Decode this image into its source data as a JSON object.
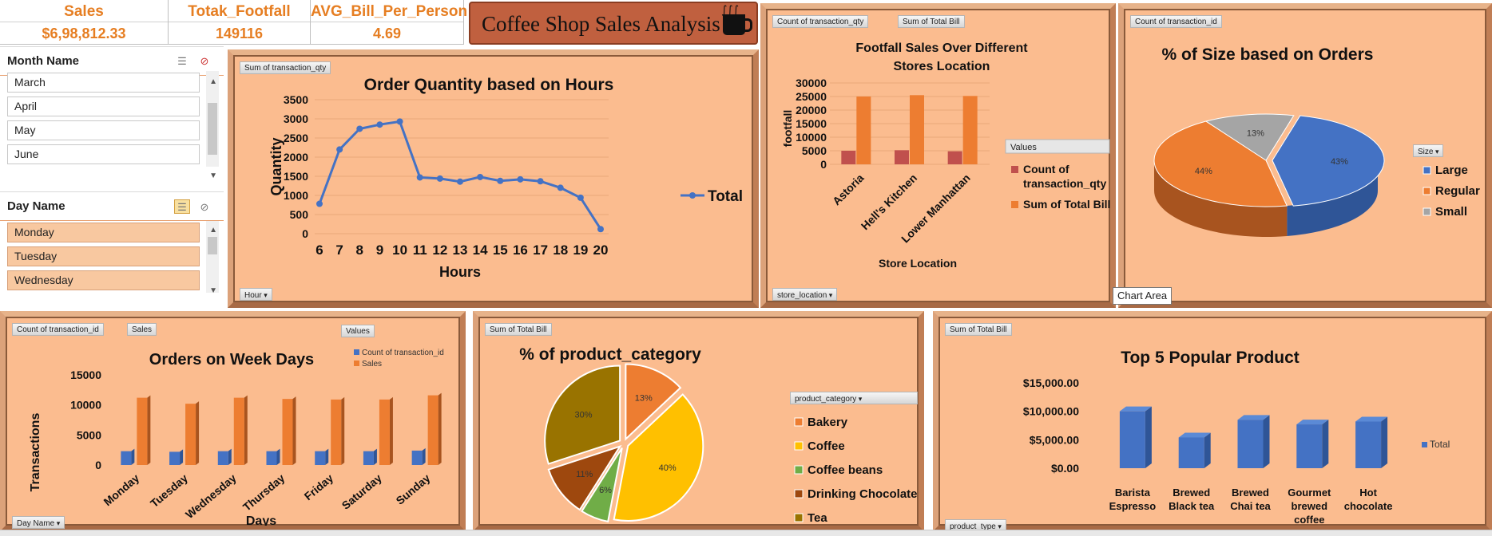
{
  "kpis": [
    {
      "label": "Sales",
      "value": "$6,98,812.33"
    },
    {
      "label": "Totak_Footfall",
      "value": "149116"
    },
    {
      "label": "AVG_Bill_Per_Person",
      "value": "4.69"
    }
  ],
  "dashboard_title": "Coffee Shop Sales Analysis",
  "slicer_month": {
    "title": "Month Name",
    "items": [
      "March",
      "April",
      "May",
      "June"
    ]
  },
  "slicer_day": {
    "title": "Day Name",
    "items": [
      "Monday",
      "Tuesday",
      "Wednesday"
    ]
  },
  "tooltip": "Chart Area",
  "field_buttons": {
    "hours_value": "Sum of transaction_qty",
    "hours_axis": "Hour",
    "store_value1": "Count of transaction_qty",
    "store_value2": "Sum of Total Bill",
    "store_axis": "store_location",
    "size_value": "Count of transaction_id",
    "size_legend": "Size",
    "week_value1": "Count of transaction_id",
    "week_value2": "Sales",
    "week_legend": "Values",
    "week_axis": "Day Name",
    "cat_value": "Sum of Total Bill",
    "cat_legend": "product_category",
    "prod_value": "Sum of Total Bill",
    "prod_axis": "product_type"
  },
  "colors": {
    "accent": "#e67e22",
    "panel_bg": "#fbbc8f",
    "blue": "#4472c4",
    "orange": "#ed7d31",
    "gray": "#a5a5a5",
    "dark_red": "#c0504d"
  },
  "chart_data": [
    {
      "id": "hours",
      "type": "line",
      "title": "Order Quantity based on Hours",
      "xlabel": "Hours",
      "ylabel": "Quantity",
      "x": [
        6,
        7,
        8,
        9,
        10,
        11,
        12,
        13,
        14,
        15,
        16,
        17,
        18,
        19,
        20
      ],
      "series": [
        {
          "name": "Total",
          "values": [
            780,
            2200,
            2740,
            2850,
            2930,
            1470,
            1440,
            1360,
            1480,
            1380,
            1420,
            1370,
            1200,
            940,
            120
          ]
        }
      ],
      "ylim": [
        0,
        3500
      ],
      "yticks": [
        0,
        500,
        1000,
        1500,
        2000,
        2500,
        3000,
        3500
      ],
      "grid": true,
      "legend": "right"
    },
    {
      "id": "store",
      "type": "bar",
      "title": "Footfall Sales Over Different Stores Location",
      "xlabel": "Store Location",
      "ylabel": "footfall",
      "categories": [
        "Astoria",
        "Hell's Kitchen",
        "Lower Manhattan"
      ],
      "series": [
        {
          "name": "Count of transaction_qty",
          "values": [
            5000,
            5200,
            4800
          ]
        },
        {
          "name": "Sum of Total Bill",
          "values": [
            25000,
            25500,
            25200
          ]
        }
      ],
      "legend_title": "Values",
      "ylim": [
        0,
        30000
      ],
      "yticks": [
        0,
        5000,
        10000,
        15000,
        20000,
        25000,
        30000
      ]
    },
    {
      "id": "size",
      "type": "pie",
      "title": "% of Size based on Orders",
      "categories": [
        "Large",
        "Regular",
        "Small"
      ],
      "values": [
        43,
        44,
        13
      ],
      "labels": [
        "43%",
        "44%",
        "13%"
      ],
      "legend": "right"
    },
    {
      "id": "week",
      "type": "bar",
      "title": "Orders on Week Days",
      "xlabel": "Days",
      "ylabel": "Transactions",
      "categories": [
        "Monday",
        "Tuesday",
        "Wednesday",
        "Thursday",
        "Friday",
        "Saturday",
        "Sunday"
      ],
      "series": [
        {
          "name": "Count of transaction_id",
          "values": [
            2300,
            2200,
            2300,
            2300,
            2300,
            2300,
            2400
          ]
        },
        {
          "name": "Sales",
          "values": [
            11200,
            10200,
            11200,
            11000,
            10900,
            10900,
            11600
          ]
        }
      ],
      "ylim": [
        0,
        15000
      ],
      "yticks": [
        0,
        5000,
        10000,
        15000
      ],
      "legend": "top-right"
    },
    {
      "id": "category",
      "type": "pie",
      "title": "% of product_category",
      "categories": [
        "Bakery",
        "Coffee",
        "Coffee beans",
        "Drinking Chocolate",
        "Tea"
      ],
      "values": [
        13,
        40,
        6,
        11,
        30
      ],
      "labels": [
        "13%",
        "40%",
        "6%",
        "11%",
        "30%"
      ],
      "legend": "right"
    },
    {
      "id": "products",
      "type": "bar",
      "title": "Top 5 Popular Product",
      "categories": [
        "Barista Espresso",
        "Brewed Black tea",
        "Brewed Chai tea",
        "Gourmet brewed coffee",
        "Hot chocolate"
      ],
      "category_lines": [
        [
          "Barista",
          "Espresso"
        ],
        [
          "Brewed",
          "Black tea"
        ],
        [
          "Brewed",
          "Chai tea"
        ],
        [
          "Gourmet",
          "brewed",
          "coffee"
        ],
        [
          "Hot",
          "chocolate"
        ]
      ],
      "series": [
        {
          "name": "Total",
          "values": [
            10000,
            5400,
            8500,
            7700,
            8200
          ]
        }
      ],
      "ylim": [
        0,
        15000
      ],
      "yticks": [
        0,
        5000,
        10000,
        15000
      ],
      "ytick_labels": [
        "$0.00",
        "$5,000.00",
        "$10,000.00",
        "$15,000.00"
      ],
      "legend": "right"
    }
  ]
}
